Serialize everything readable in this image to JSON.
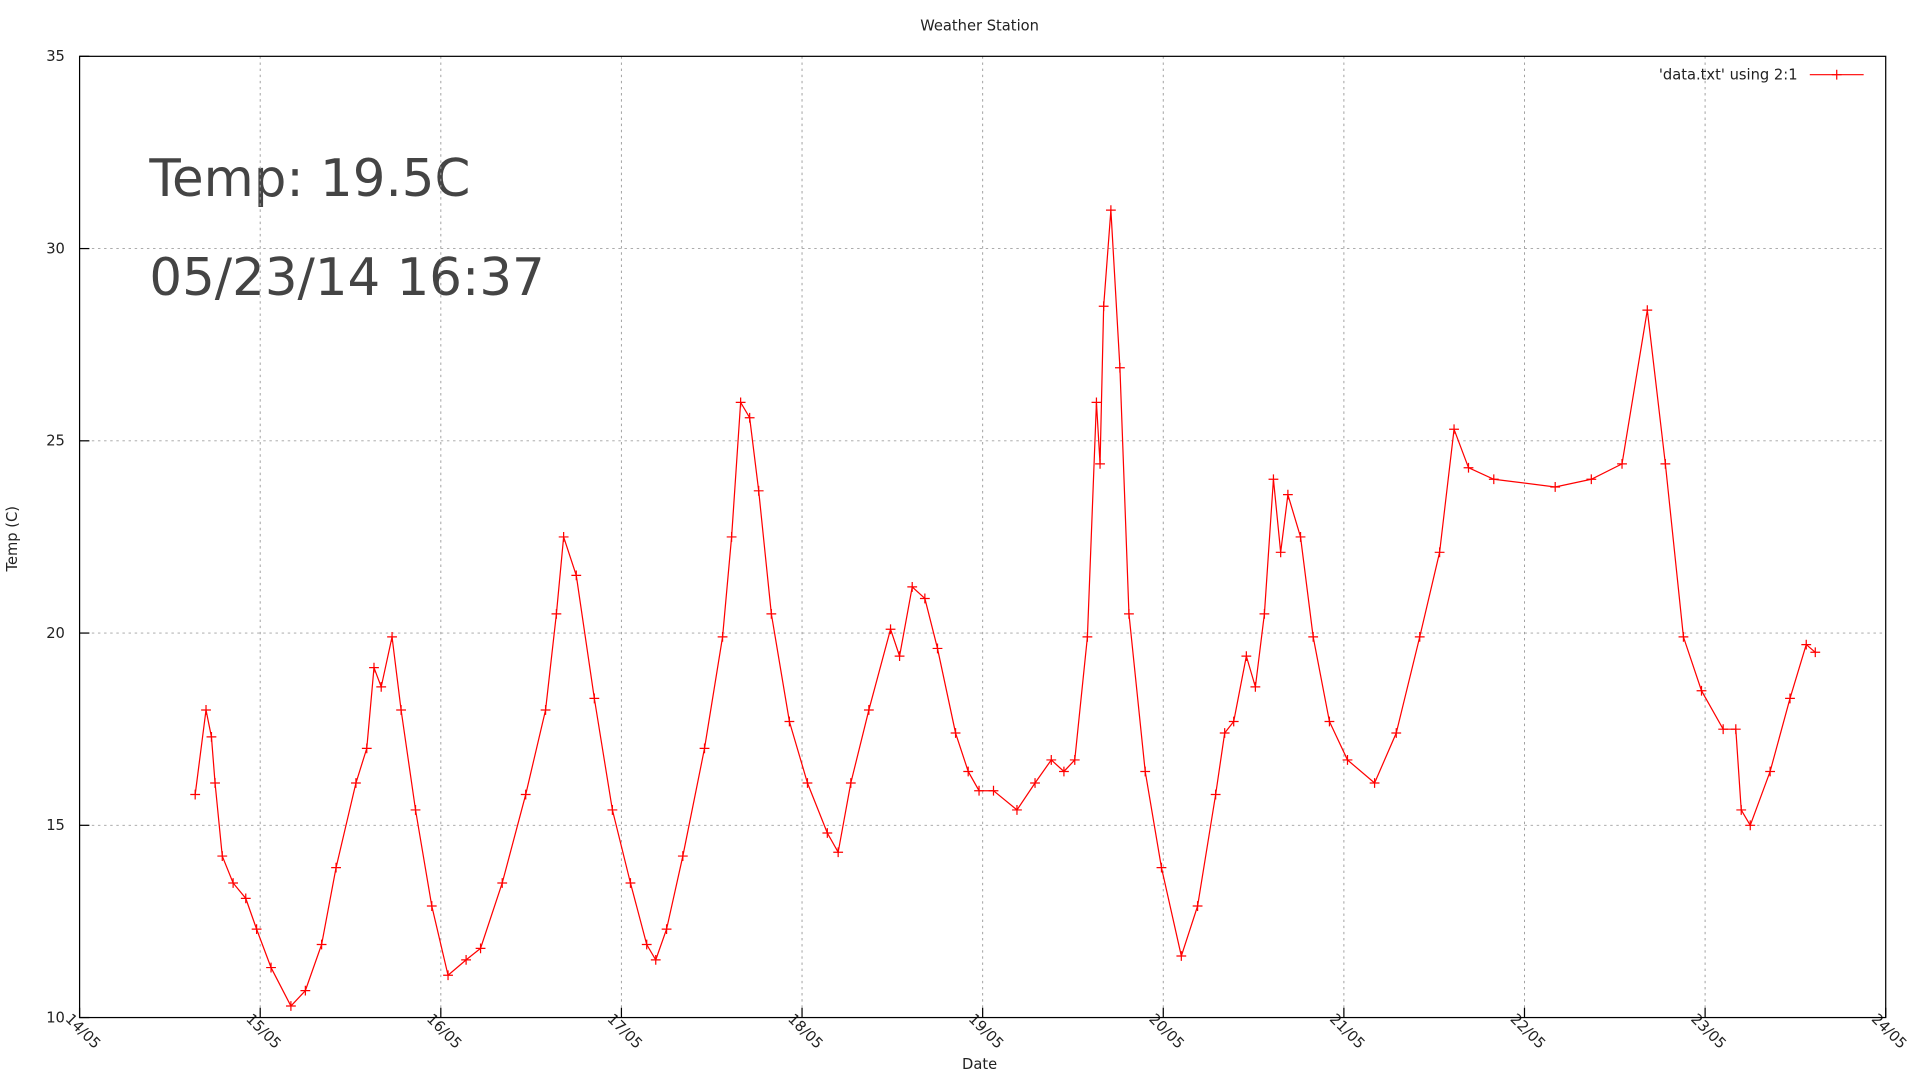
{
  "chart_data": {
    "type": "line",
    "title": "Weather Station",
    "x_label": "Date",
    "y_label": "Temp (C)",
    "annotations": [
      "Temp: 19.5C",
      "05/23/14 16:37"
    ],
    "xlim": [
      14,
      24
    ],
    "xticks": [
      {
        "value": 14,
        "label": "14/05"
      },
      {
        "value": 15,
        "label": "15/05"
      },
      {
        "value": 16,
        "label": "16/05"
      },
      {
        "value": 17,
        "label": "17/05"
      },
      {
        "value": 18,
        "label": "18/05"
      },
      {
        "value": 19,
        "label": "19/05"
      },
      {
        "value": 20,
        "label": "20/05"
      },
      {
        "value": 21,
        "label": "21/05"
      },
      {
        "value": 22,
        "label": "22/05"
      },
      {
        "value": 23,
        "label": "23/05"
      },
      {
        "value": 24,
        "label": "24/05"
      }
    ],
    "ylim": [
      10,
      35
    ],
    "yticks": [
      10,
      15,
      20,
      25,
      30,
      35
    ],
    "grid": true,
    "legend": "top-right",
    "series": [
      {
        "name": "'data.txt' using 2:1",
        "color": "#ff0000",
        "x": [
          14.64,
          14.7,
          14.73,
          14.75,
          14.79,
          14.85,
          14.92,
          14.98,
          15.06,
          15.17,
          15.25,
          15.34,
          15.42,
          15.53,
          15.59,
          15.63,
          15.67,
          15.73,
          15.78,
          15.86,
          15.95,
          16.04,
          16.14,
          16.22,
          16.34,
          16.47,
          16.58,
          16.64,
          16.68,
          16.75,
          16.85,
          16.95,
          17.05,
          17.14,
          17.19,
          17.25,
          17.34,
          17.46,
          17.56,
          17.61,
          17.66,
          17.71,
          17.76,
          17.83,
          17.93,
          18.03,
          18.14,
          18.2,
          18.27,
          18.37,
          18.49,
          18.54,
          18.61,
          18.68,
          18.75,
          18.85,
          18.92,
          18.98,
          19.06,
          19.19,
          19.29,
          19.38,
          19.45,
          19.51,
          19.58,
          19.63,
          19.65,
          19.67,
          19.71,
          19.76,
          19.81,
          19.9,
          19.99,
          20.1,
          20.19,
          20.29,
          20.34,
          20.39,
          20.46,
          20.51,
          20.56,
          20.61,
          20.65,
          20.69,
          20.76,
          20.83,
          20.92,
          21.02,
          21.17,
          21.29,
          21.42,
          21.53,
          21.61,
          21.69,
          21.83,
          22.17,
          22.37,
          22.54,
          22.68,
          22.78,
          22.88,
          22.98,
          23.1,
          23.17,
          23.2,
          23.25,
          23.36,
          23.47,
          23.56,
          23.61
        ],
        "values": [
          15.8,
          18.0,
          17.3,
          16.1,
          14.2,
          13.5,
          13.1,
          12.3,
          11.3,
          10.3,
          10.7,
          11.9,
          13.9,
          16.1,
          17.0,
          19.1,
          18.6,
          19.9,
          18.0,
          15.4,
          12.9,
          11.1,
          11.5,
          11.8,
          13.5,
          15.8,
          18.0,
          20.5,
          22.5,
          21.5,
          18.3,
          15.4,
          13.5,
          11.9,
          11.5,
          12.3,
          14.2,
          17.0,
          19.9,
          22.5,
          26.0,
          25.6,
          23.7,
          20.5,
          17.7,
          16.1,
          14.8,
          14.3,
          16.1,
          18.0,
          20.1,
          19.4,
          21.2,
          20.9,
          19.6,
          17.4,
          16.4,
          15.9,
          15.9,
          15.4,
          16.1,
          16.7,
          16.4,
          16.7,
          19.9,
          26.0,
          24.4,
          28.5,
          31.0,
          26.9,
          20.5,
          16.4,
          13.9,
          11.6,
          12.9,
          15.8,
          17.4,
          17.7,
          19.4,
          18.6,
          20.5,
          24.0,
          22.1,
          23.6,
          22.5,
          19.9,
          17.7,
          16.7,
          16.1,
          17.4,
          19.9,
          22.1,
          25.3,
          24.3,
          24.0,
          23.8,
          24.0,
          24.4,
          28.4,
          24.4,
          19.9,
          18.5,
          17.5,
          17.5,
          15.4,
          15.0,
          16.4,
          18.3,
          19.7,
          19.5
        ]
      }
    ]
  }
}
